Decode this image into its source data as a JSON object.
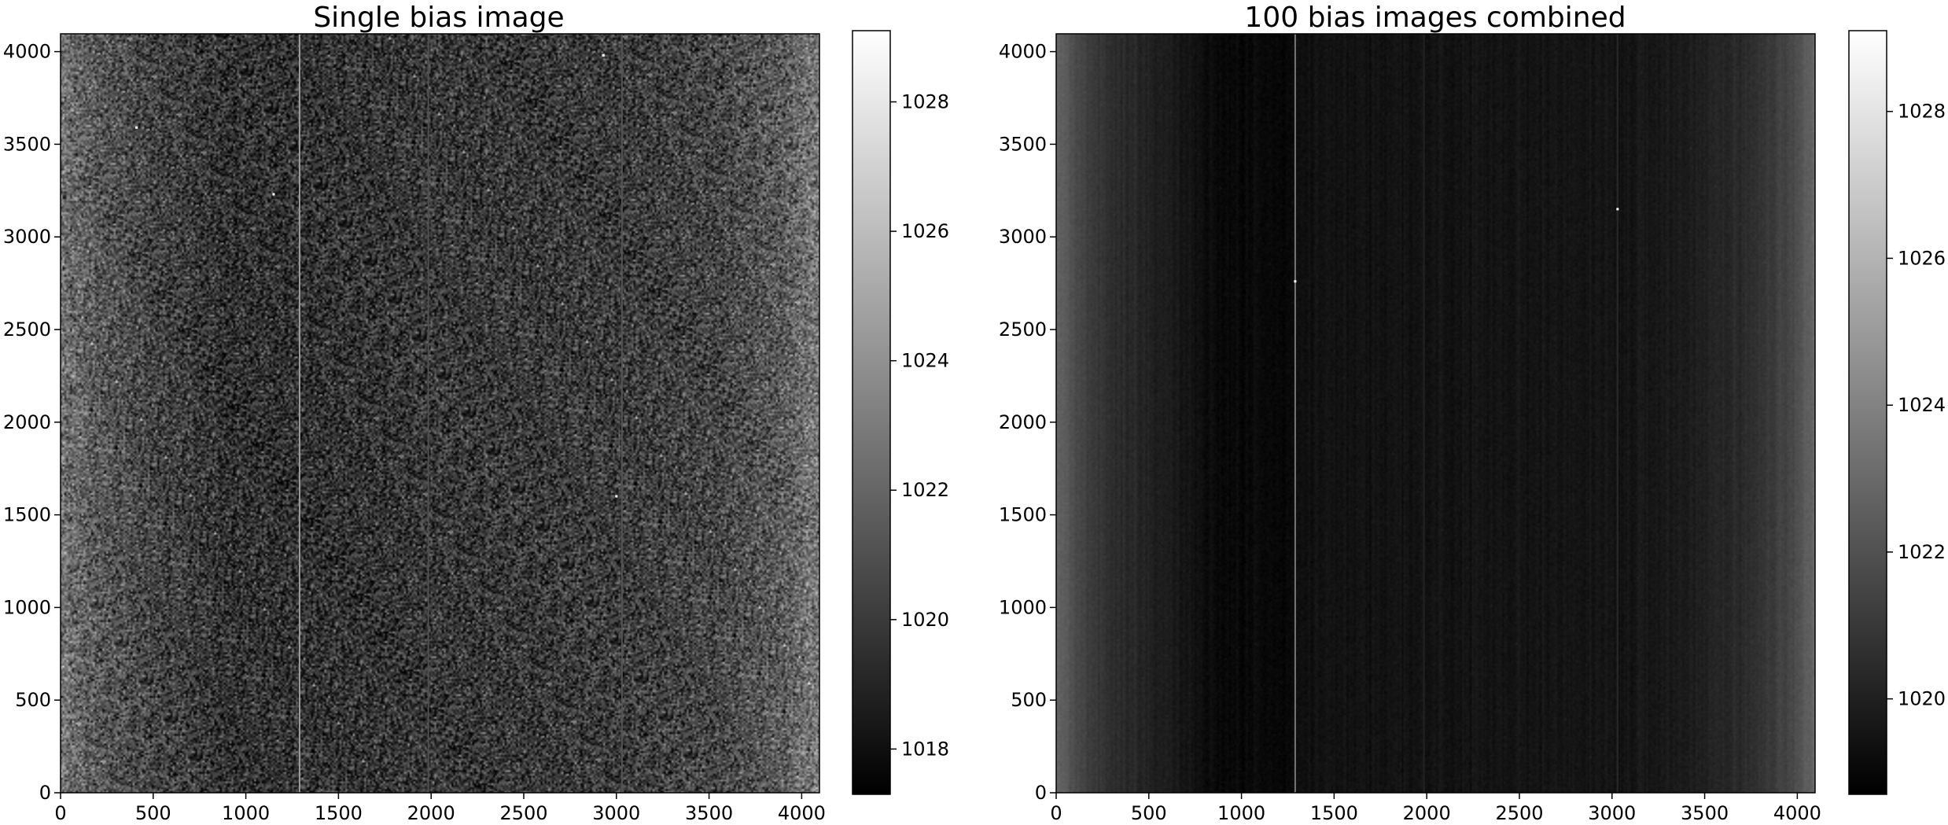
{
  "chart_data": [
    {
      "type": "heatmap",
      "title": "Single bias image",
      "x_range": [
        0,
        4096
      ],
      "y_range": [
        0,
        4096
      ],
      "x_ticks": [
        0,
        500,
        1000,
        1500,
        2000,
        2500,
        3000,
        3500,
        4000
      ],
      "y_ticks": [
        0,
        500,
        1000,
        1500,
        2000,
        2500,
        3000,
        3500,
        4000
      ],
      "colormap": "gray",
      "grid": false,
      "colorbar": {
        "range": [
          1017.3,
          1029.1
        ],
        "ticks": [
          1018,
          1020,
          1022,
          1024,
          1026,
          1028
        ]
      },
      "column_profile": [
        {
          "x": 0,
          "value": 1022.6
        },
        {
          "x": 200,
          "value": 1021.4
        },
        {
          "x": 500,
          "value": 1020.4
        },
        {
          "x": 900,
          "value": 1019.6
        },
        {
          "x": 1300,
          "value": 1019.5
        },
        {
          "x": 2000,
          "value": 1019.8
        },
        {
          "x": 3000,
          "value": 1020.0
        },
        {
          "x": 3600,
          "value": 1020.6
        },
        {
          "x": 3900,
          "value": 1021.5
        },
        {
          "x": 4096,
          "value": 1023.0
        }
      ],
      "noise_sigma": 1.6,
      "bright_columns": [
        {
          "x": 1290,
          "value": 1024.5
        },
        {
          "x": 1985,
          "value": 1021.0
        },
        {
          "x": 3030,
          "value": 1021.2
        }
      ],
      "hot_pixels": [
        {
          "x": 3000,
          "y": 1600
        },
        {
          "x": 410,
          "y": 3590
        },
        {
          "x": 1150,
          "y": 3230
        },
        {
          "x": 2930,
          "y": 3980
        }
      ]
    },
    {
      "type": "heatmap",
      "title": "100 bias images combined",
      "x_range": [
        0,
        4096
      ],
      "y_range": [
        0,
        4096
      ],
      "x_ticks": [
        0,
        500,
        1000,
        1500,
        2000,
        2500,
        3000,
        3500,
        4000
      ],
      "y_ticks": [
        0,
        500,
        1000,
        1500,
        2000,
        2500,
        3000,
        3500,
        4000
      ],
      "colormap": "gray",
      "grid": false,
      "colorbar": {
        "range": [
          1018.7,
          1029.1
        ],
        "ticks": [
          1020,
          1022,
          1024,
          1026,
          1028
        ]
      },
      "column_profile": [
        {
          "x": 0,
          "value": 1022.8
        },
        {
          "x": 50,
          "value": 1022.4
        },
        {
          "x": 150,
          "value": 1021.3
        },
        {
          "x": 300,
          "value": 1020.6
        },
        {
          "x": 600,
          "value": 1019.8
        },
        {
          "x": 900,
          "value": 1019.1
        },
        {
          "x": 1250,
          "value": 1019.0
        },
        {
          "x": 1350,
          "value": 1019.4
        },
        {
          "x": 2000,
          "value": 1019.5
        },
        {
          "x": 3000,
          "value": 1019.5
        },
        {
          "x": 3400,
          "value": 1019.8
        },
        {
          "x": 3700,
          "value": 1020.4
        },
        {
          "x": 3950,
          "value": 1021.5
        },
        {
          "x": 4096,
          "value": 1022.9
        }
      ],
      "noise_sigma": 0.12,
      "bright_columns": [
        {
          "x": 1290,
          "value": 1023.5
        },
        {
          "x": 1985,
          "value": 1020.1
        },
        {
          "x": 3030,
          "value": 1020.3
        }
      ],
      "hot_pixels": [
        {
          "x": 1290,
          "y": 2760
        },
        {
          "x": 3030,
          "y": 3150
        }
      ]
    }
  ]
}
